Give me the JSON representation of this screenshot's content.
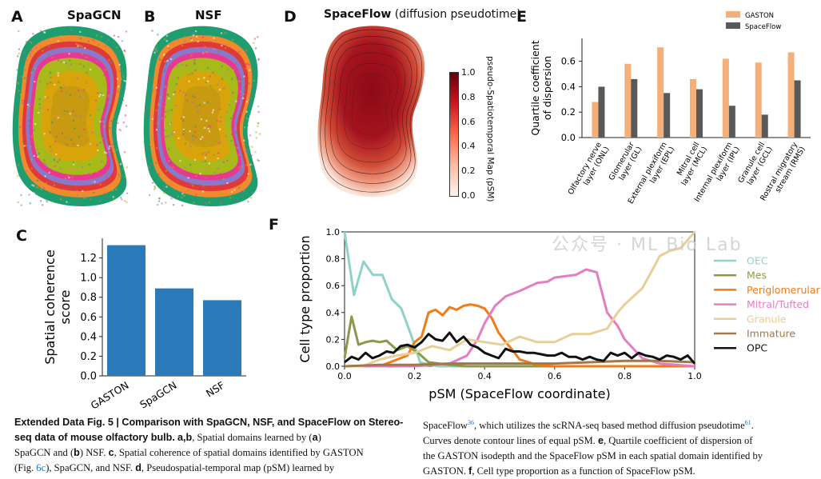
{
  "panels": {
    "a": {
      "letter": "A",
      "title": "SpaGCN"
    },
    "b": {
      "letter": "B",
      "title": "NSF"
    },
    "c": {
      "letter": "C"
    },
    "d": {
      "letter": "D",
      "title_bold": "SpaceFlow",
      "title_rest": " (diffusion pseudotime)",
      "colorbar_label": "pseudo-Spatiotemporal Map (pSM)",
      "colorbar_ticks": [
        "1.0",
        "0.8",
        "0.6",
        "0.4",
        "0.2",
        "0.0"
      ]
    },
    "e": {
      "letter": "E"
    },
    "f": {
      "letter": "F"
    }
  },
  "domain_colors": {
    "outer": "#1e9e6e",
    "orange": "#f08a2c",
    "red": "#e0393a",
    "purple": "#8a79c8",
    "magenta": "#e8388f",
    "yellowgreen": "#a8b91a",
    "gold": "#d9a40a",
    "core": "#c79a12"
  },
  "watermark": "公众号 · ML Bio Lab",
  "caption": {
    "left_heading": "Extended Data Fig. 5 | Comparison with SpaGCN, NSF, and SpaceFlow on Stereo-seq data of mouse olfactory bulb.",
    "left_line1": "a,b",
    "left_line1b": ", Spatial domains learned by (",
    "left_line1c": "a",
    "left_line1d": ")",
    "left_line2a": "SpaGCN and (",
    "left_line2b": "b",
    "left_line2c": ") NSF. ",
    "left_line2d": "c",
    "left_line2e": ", Spatial coherence of spatial domains identified by GASTON",
    "left_line3a": "(Fig. ",
    "left_line3ref": "6c",
    "left_line3b": "), SpaGCN, and NSF. ",
    "left_line3c": "d",
    "left_line3d": ", Pseudospatial-temporal map (pSM) learned by",
    "right_line1a": "SpaceFlow",
    "right_line1ref": "36",
    "right_line1b": ", which utilizes the scRNA-seq based method diffusion pseudotime",
    "right_line1ref2": "61",
    "right_line1c": ".",
    "right_line2a": "Curves denote contour lines of equal pSM. ",
    "right_line2b": "e",
    "right_line2c": ", Quartile coefficient of dispersion of",
    "right_line3": "the GASTON isodepth and the SpaceFlow pSM in each spatial domain identified by",
    "right_line4a": "GASTON. ",
    "right_line4b": "f",
    "right_line4c": ", Cell type proportion as a function of SpaceFlow pSM."
  },
  "chart_data": [
    {
      "id": "C",
      "type": "bar",
      "categories": [
        "GASTON",
        "SpaGCN",
        "NSF"
      ],
      "values": [
        1.33,
        0.89,
        0.77
      ],
      "ylabel": "Spatial coherence\nscore",
      "ylim": [
        0,
        1.4
      ],
      "yticks": [
        "0.0",
        "0.2",
        "0.4",
        "0.6",
        "0.8",
        "1.0",
        "1.2"
      ],
      "color": "#2b7bba"
    },
    {
      "id": "E",
      "type": "bar",
      "categories": [
        "Olfactory nerve\nlayer (ONL)",
        "Glomerular\nlayer (GL)",
        "External plexiform\nlayer (EPL)",
        "Mitral cell\nlayer (MCL)",
        "Internal plexiform\nlayer (IPL)",
        "Granule cell\nlayer (GCL)",
        "Rostral migratory\nstream (RMS)"
      ],
      "series": [
        {
          "name": "GASTON",
          "color": "#f5b07a",
          "values": [
            0.28,
            0.58,
            0.71,
            0.46,
            0.62,
            0.59,
            0.67
          ]
        },
        {
          "name": "SpaceFlow",
          "color": "#595959",
          "values": [
            0.4,
            0.46,
            0.35,
            0.38,
            0.25,
            0.18,
            0.45
          ]
        }
      ],
      "ylabel": "Quartile coefficient\nof dispersion",
      "ylim": [
        0,
        0.78
      ],
      "yticks": [
        "0.0",
        "0.2",
        "0.4",
        "0.6"
      ],
      "legend": "top-left"
    },
    {
      "id": "F",
      "type": "line",
      "xlabel": "pSM (SpaceFlow coordinate)",
      "ylabel": "Cell type proportion",
      "xlim": [
        0,
        1.0
      ],
      "ylim": [
        0,
        1.0
      ],
      "xticks": [
        "0.0",
        "0.2",
        "0.4",
        "0.6",
        "0.8",
        "1.0"
      ],
      "yticks": [
        "0.0",
        "0.2",
        "0.4",
        "0.6",
        "0.8",
        "1.0"
      ],
      "legend": "right",
      "series": [
        {
          "name": "OEC",
          "color": "#8fd3c7",
          "x": [
            0,
            0.027,
            0.054,
            0.081,
            0.108,
            0.135,
            0.162,
            0.189,
            0.216,
            0.243,
            0.27,
            0.3,
            0.33,
            0.36,
            0.4,
            0.45,
            0.5,
            0.6,
            0.7,
            0.8,
            0.9,
            1.0
          ],
          "y": [
            1.0,
            0.53,
            0.78,
            0.68,
            0.68,
            0.5,
            0.43,
            0.24,
            0.03,
            0.01,
            0.0,
            0.0,
            0.0,
            0.0,
            0.0,
            0.0,
            0.0,
            0.0,
            0.0,
            0.0,
            0.0,
            0.0
          ]
        },
        {
          "name": "Mes",
          "color": "#8a9a4a",
          "x": [
            0,
            0.02,
            0.04,
            0.06,
            0.08,
            0.1,
            0.12,
            0.15,
            0.18,
            0.21,
            0.24,
            0.27,
            0.3,
            0.35,
            0.4,
            0.5,
            0.6,
            0.7,
            0.8,
            0.9,
            1.0
          ],
          "y": [
            0.06,
            0.37,
            0.16,
            0.18,
            0.19,
            0.18,
            0.19,
            0.12,
            0.15,
            0.1,
            0.03,
            0.02,
            0.01,
            0.0,
            0.0,
            0.0,
            0.0,
            0.0,
            0.0,
            0.0,
            0.0
          ]
        },
        {
          "name": "Periglomerular",
          "color": "#f07b17",
          "x": [
            0,
            0.05,
            0.1,
            0.15,
            0.18,
            0.2,
            0.22,
            0.24,
            0.26,
            0.28,
            0.3,
            0.32,
            0.34,
            0.36,
            0.38,
            0.4,
            0.42,
            0.44,
            0.46,
            0.48,
            0.5,
            0.55,
            0.6,
            0.7,
            0.8,
            0.9,
            1.0
          ],
          "y": [
            0.0,
            0.0,
            0.0,
            0.05,
            0.08,
            0.18,
            0.22,
            0.4,
            0.42,
            0.38,
            0.44,
            0.42,
            0.45,
            0.46,
            0.45,
            0.43,
            0.36,
            0.25,
            0.18,
            0.12,
            0.05,
            0.01,
            0.0,
            0.0,
            0.0,
            0.0,
            0.0
          ]
        },
        {
          "name": "Mitral/Tufted",
          "color": "#e47ec2",
          "x": [
            0,
            0.2,
            0.3,
            0.35,
            0.38,
            0.4,
            0.43,
            0.46,
            0.5,
            0.55,
            0.58,
            0.6,
            0.63,
            0.66,
            0.69,
            0.72,
            0.75,
            0.78,
            0.8,
            0.85,
            0.9,
            1.0
          ],
          "y": [
            0.0,
            0.0,
            0.02,
            0.08,
            0.2,
            0.32,
            0.45,
            0.52,
            0.56,
            0.62,
            0.63,
            0.66,
            0.67,
            0.68,
            0.72,
            0.7,
            0.4,
            0.3,
            0.2,
            0.06,
            0.02,
            0.0
          ]
        },
        {
          "name": "Granule",
          "color": "#e6cf98",
          "x": [
            0,
            0.05,
            0.1,
            0.15,
            0.2,
            0.25,
            0.3,
            0.35,
            0.4,
            0.45,
            0.5,
            0.55,
            0.6,
            0.65,
            0.7,
            0.75,
            0.78,
            0.8,
            0.85,
            0.88,
            0.9,
            0.93,
            0.96,
            1.0
          ],
          "y": [
            0.0,
            0.0,
            0.05,
            0.08,
            0.1,
            0.15,
            0.12,
            0.2,
            0.18,
            0.16,
            0.22,
            0.18,
            0.18,
            0.24,
            0.24,
            0.28,
            0.4,
            0.46,
            0.58,
            0.72,
            0.82,
            0.86,
            0.88,
            1.0
          ]
        },
        {
          "name": "Immature",
          "color": "#a0784a",
          "x": [
            0,
            0.1,
            0.2,
            0.3,
            0.4,
            0.5,
            0.6,
            0.7,
            0.8,
            0.9,
            1.0
          ],
          "y": [
            0.0,
            0.01,
            0.01,
            0.02,
            0.02,
            0.02,
            0.02,
            0.03,
            0.04,
            0.04,
            0.03
          ]
        },
        {
          "name": "OPC",
          "color": "#111111",
          "x": [
            0,
            0.02,
            0.04,
            0.06,
            0.08,
            0.1,
            0.12,
            0.14,
            0.16,
            0.18,
            0.2,
            0.22,
            0.24,
            0.26,
            0.28,
            0.3,
            0.32,
            0.34,
            0.36,
            0.38,
            0.4,
            0.42,
            0.44,
            0.46,
            0.48,
            0.5,
            0.52,
            0.54,
            0.56,
            0.58,
            0.6,
            0.62,
            0.64,
            0.66,
            0.68,
            0.7,
            0.72,
            0.74,
            0.76,
            0.78,
            0.8,
            0.82,
            0.84,
            0.86,
            0.88,
            0.9,
            0.92,
            0.94,
            0.96,
            0.98,
            1.0
          ],
          "y": [
            0.03,
            0.07,
            0.05,
            0.1,
            0.06,
            0.08,
            0.11,
            0.1,
            0.15,
            0.16,
            0.14,
            0.18,
            0.24,
            0.2,
            0.19,
            0.25,
            0.18,
            0.22,
            0.16,
            0.14,
            0.1,
            0.08,
            0.06,
            0.13,
            0.11,
            0.11,
            0.1,
            0.1,
            0.09,
            0.08,
            0.08,
            0.1,
            0.07,
            0.07,
            0.05,
            0.07,
            0.05,
            0.04,
            0.1,
            0.08,
            0.1,
            0.06,
            0.1,
            0.08,
            0.07,
            0.05,
            0.08,
            0.07,
            0.05,
            0.08,
            0.02
          ]
        }
      ]
    }
  ]
}
